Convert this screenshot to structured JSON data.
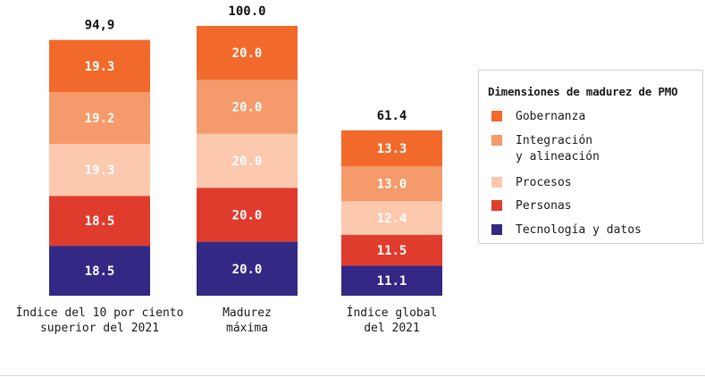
{
  "chart_data": {
    "type": "bar",
    "stacked": true,
    "categories": [
      "Índice del 10 por ciento\nsuperior del 2021",
      "Madurez\nmáxima",
      "Índice global\ndel 2021"
    ],
    "totals": [
      "94,9",
      "100.0",
      "61.4"
    ],
    "series": [
      {
        "name": "Tecnología y datos",
        "color": "#332884",
        "values": [
          18.5,
          20.0,
          11.1
        ],
        "labels": [
          "18.5",
          "20.0",
          "11.1"
        ]
      },
      {
        "name": "Personas",
        "color": "#e03c2e",
        "values": [
          18.5,
          20.0,
          11.5
        ],
        "labels": [
          "18.5",
          "20.0",
          "11.5"
        ]
      },
      {
        "name": "Procesos",
        "color": "#fcc8ae",
        "values": [
          19.3,
          20.0,
          12.4
        ],
        "labels": [
          "19.3",
          "20.0",
          "12.4"
        ]
      },
      {
        "name": "Integración\ny alineación",
        "color": "#f59a6a",
        "values": [
          19.2,
          20.0,
          13.0
        ],
        "labels": [
          "19.2",
          "20.0",
          "13.0"
        ]
      },
      {
        "name": "Gobernanza",
        "color": "#f26a2b",
        "values": [
          19.3,
          20.0,
          13.3
        ],
        "labels": [
          "19.3",
          "20.0",
          "13.3"
        ]
      }
    ],
    "ylim": [
      0,
      100
    ],
    "grid": false,
    "legend_position": "right"
  },
  "legend": {
    "title": "Dimensiones de madurez de PMO",
    "items": [
      {
        "label": "Gobernanza",
        "color": "#f26a2b"
      },
      {
        "label": "Integración\ny alineación",
        "color": "#f59a6a"
      },
      {
        "label": "Procesos",
        "color": "#fcc8ae"
      },
      {
        "label": "Personas",
        "color": "#e03c2e"
      },
      {
        "label": "Tecnología y datos",
        "color": "#332884"
      }
    ]
  }
}
